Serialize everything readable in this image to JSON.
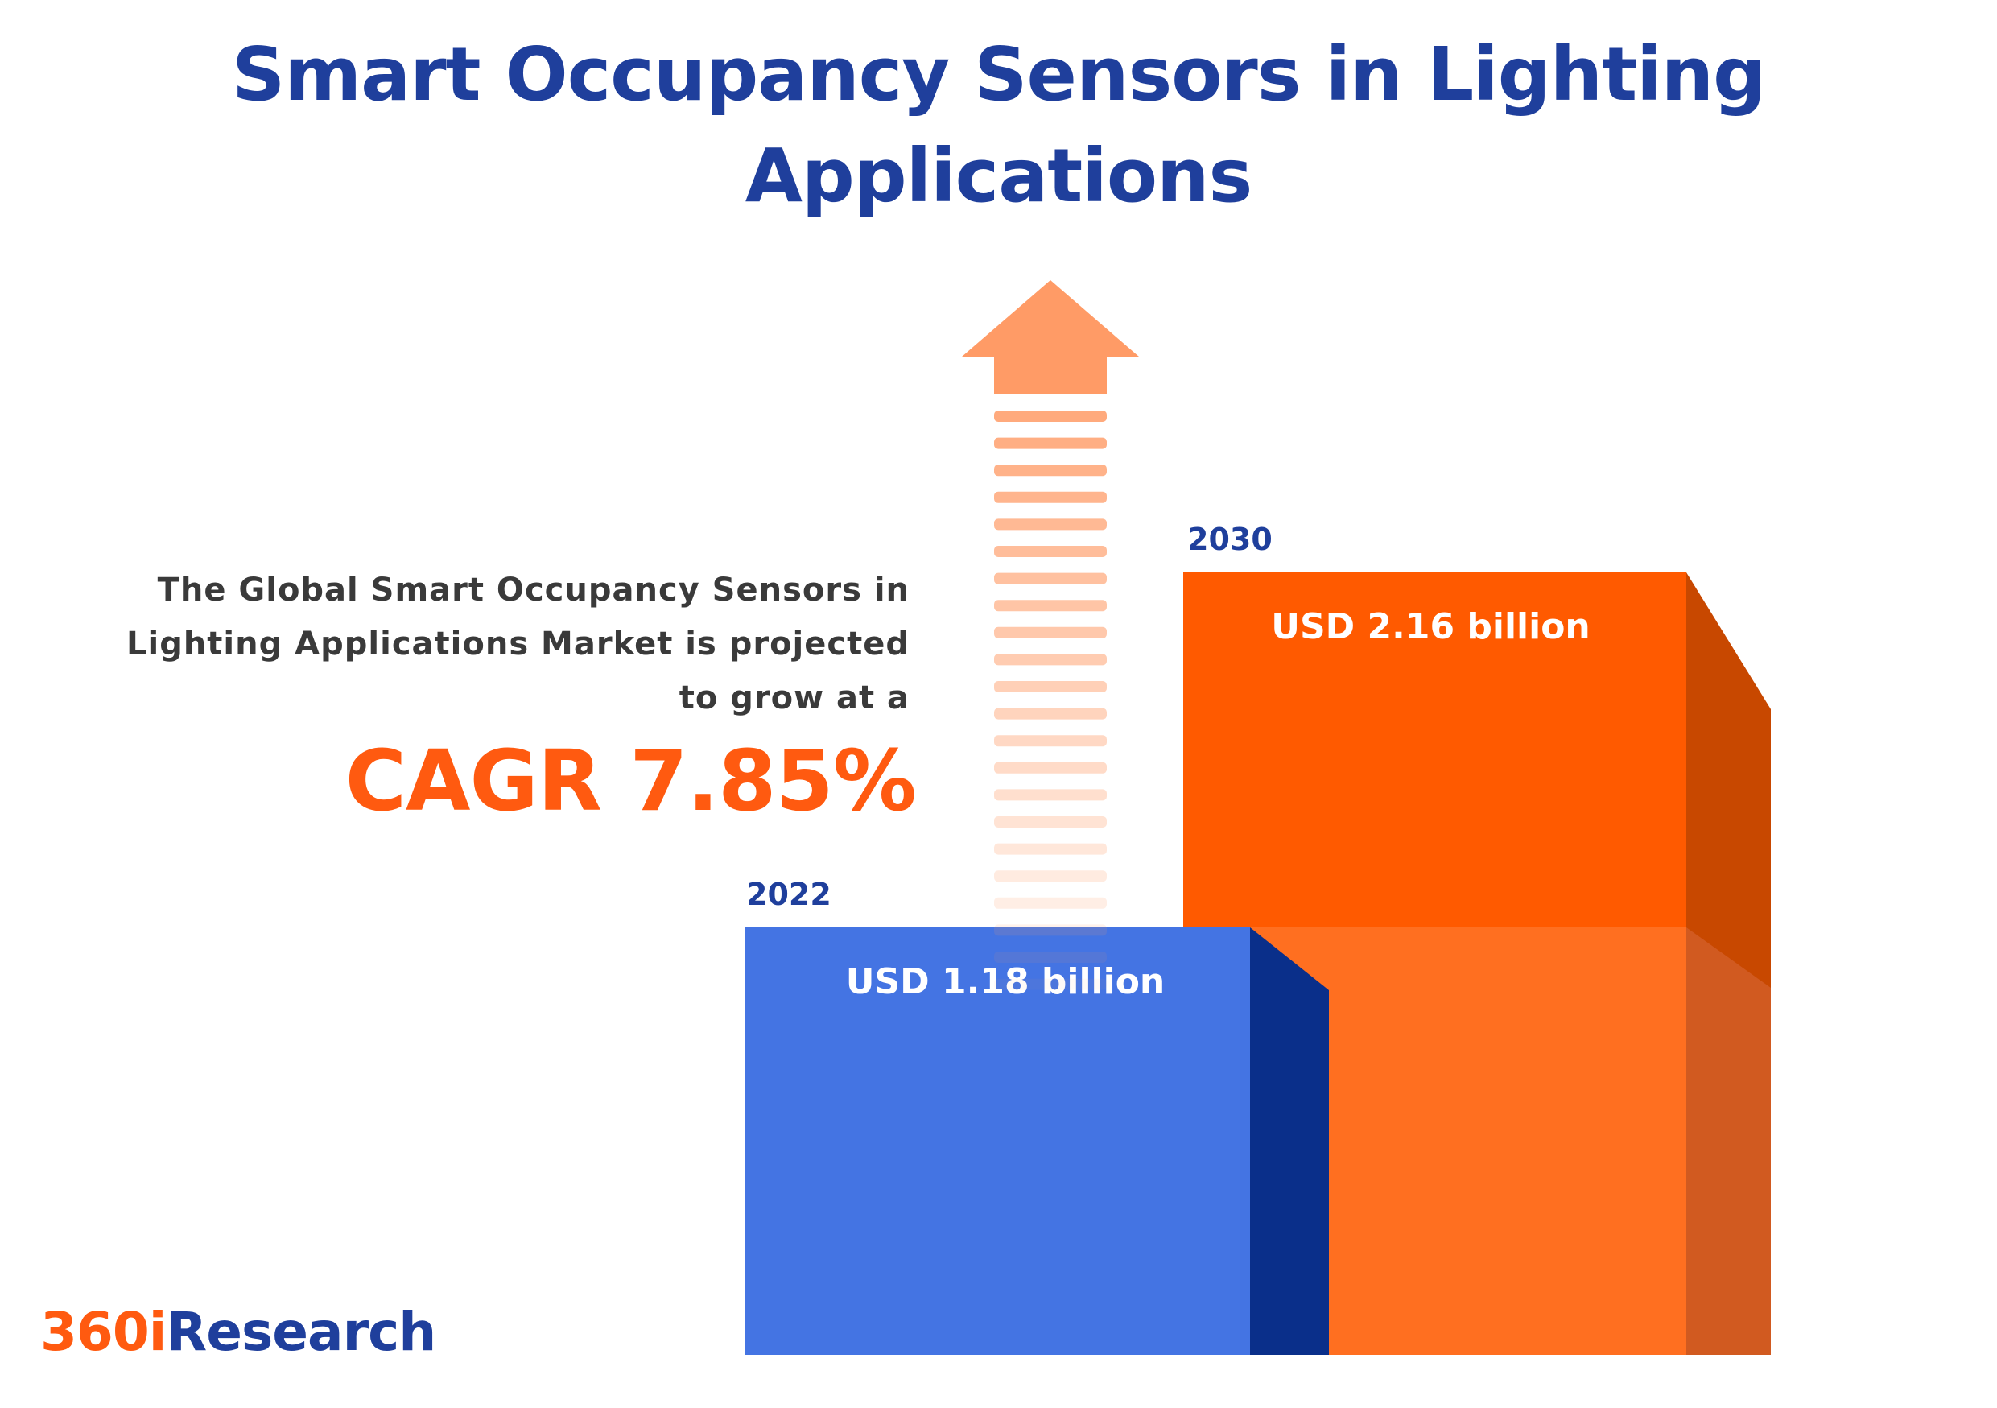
{
  "title": "Smart Occupancy Sensors in Lighting Applications",
  "description": {
    "line1": "The Global Smart Occupancy Sensors in",
    "line2": "Lighting Applications Market is projected",
    "line3": "to grow at a"
  },
  "cagr_text": "CAGR 7.85%",
  "logo": {
    "part1": "360i",
    "part2": "Research"
  },
  "colors": {
    "title": "#1f3f9c",
    "orange": "#ff5a00",
    "orange_light": "#ff6f20",
    "orange_side": "#c84800",
    "blue": "#4474e3",
    "blue_side": "#0a2f8a",
    "arrow": "#ff9b66"
  },
  "icons": [
    "growth-arrow-icon"
  ],
  "chart_data": {
    "type": "bar",
    "categories": [
      "2022",
      "2030"
    ],
    "values": [
      1.18,
      2.16
    ],
    "value_labels": [
      "USD 1.18 billion",
      "USD 2.16 billion"
    ],
    "unit": "USD billion",
    "cagr_percent": 7.85
  }
}
